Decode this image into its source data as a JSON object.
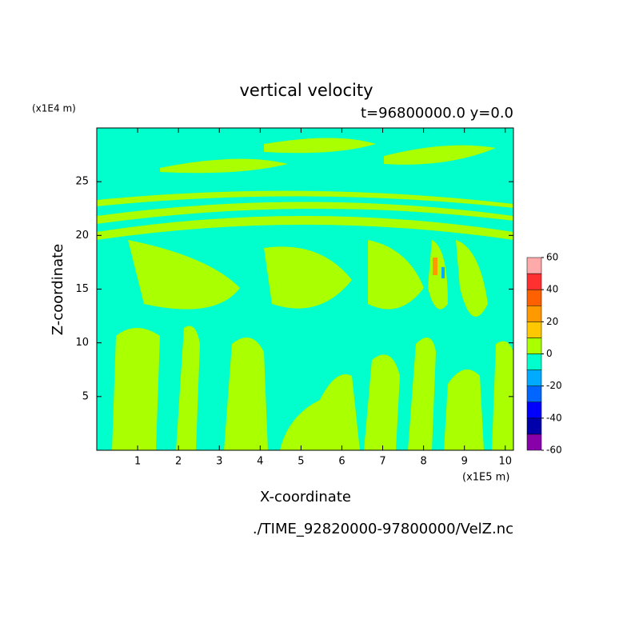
{
  "chart_data": {
    "type": "contour",
    "title": "vertical velocity",
    "subtitle": "t=96800000.0 y=0.0",
    "xlabel": "X-coordinate",
    "ylabel": "Z-coordinate",
    "xunit": "(x1E5 m)",
    "yunit": "(x1E4 m)",
    "source": "./TIME_92820000-97800000/VelZ.nc",
    "xlim": [
      0,
      10.2
    ],
    "ylim": [
      0,
      30
    ],
    "xticks": [
      1,
      2,
      3,
      4,
      5,
      6,
      7,
      8,
      9,
      10
    ],
    "yticks": [
      5,
      10,
      15,
      20,
      25
    ],
    "colorbar": {
      "levels": [
        -60,
        -50,
        -40,
        -30,
        -20,
        -10,
        0,
        10,
        20,
        30,
        40,
        50,
        60
      ],
      "colors": [
        "#8800aa",
        "#0000aa",
        "#0000ff",
        "#0066ff",
        "#00aaff",
        "#00ffcc",
        "#aaff00",
        "#ffc800",
        "#ff9900",
        "#ff6000",
        "#ff3030",
        "#ffaaaa"
      ],
      "ticks": [
        -60,
        -40,
        -20,
        0,
        20,
        40,
        60
      ]
    }
  }
}
